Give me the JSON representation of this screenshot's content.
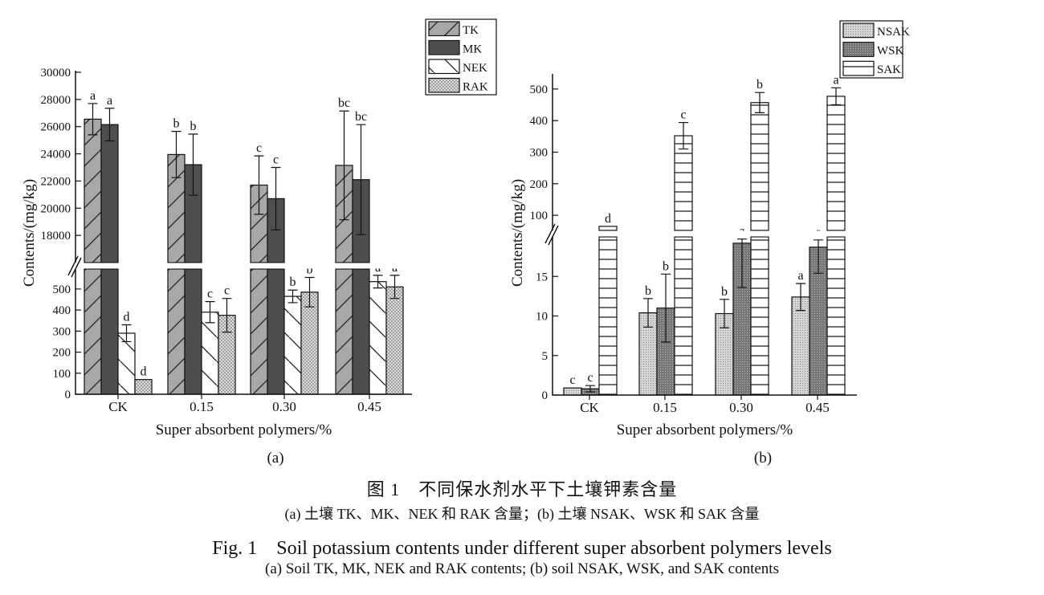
{
  "chart_data": [
    {
      "type": "bar",
      "panel_label": "(a)",
      "xlabel": "Super absorbent polymers/%",
      "ylabel": "Contents/(mg/kg)",
      "categories": [
        "CK",
        "0.15",
        "0.30",
        "0.45"
      ],
      "y_axis_break": true,
      "ylim_lower": [
        0,
        595
      ],
      "ylim_upper": [
        16000,
        30000
      ],
      "yticks_lower": [
        0,
        100,
        200,
        300,
        400,
        500
      ],
      "yticks_upper": [
        18000,
        20000,
        22000,
        24000,
        26000,
        28000,
        30000
      ],
      "legend_position": "top-right",
      "grid": false,
      "series": [
        {
          "name": "TK",
          "values": [
            26550,
            23950,
            21700,
            23150
          ],
          "errors": [
            1150,
            1700,
            2150,
            4000
          ],
          "letters": [
            "a",
            "b",
            "c",
            "bc"
          ],
          "pattern": "diagonal-forward",
          "color": "#a8a8a8"
        },
        {
          "name": "MK",
          "values": [
            26150,
            23200,
            20700,
            22100
          ],
          "errors": [
            1200,
            2250,
            2300,
            4050
          ],
          "letters": [
            "a",
            "b",
            "c",
            "bc"
          ],
          "pattern": "solid",
          "color": "#4e4e4e"
        },
        {
          "name": "NEK",
          "values": [
            290,
            390,
            465,
            535
          ],
          "errors": [
            40,
            50,
            30,
            30
          ],
          "letters": [
            "d",
            "c",
            "b",
            "a"
          ],
          "pattern": "diagonal-back",
          "color": "#ffffff"
        },
        {
          "name": "RAK",
          "values": [
            70,
            375,
            485,
            510
          ],
          "errors": [
            0,
            80,
            70,
            55
          ],
          "letters": [
            "d",
            "c",
            "b",
            "a"
          ],
          "pattern": "crosshatch",
          "color": "#d8d8d8"
        }
      ]
    },
    {
      "type": "bar",
      "panel_label": "(b)",
      "xlabel": "Super absorbent polymers/%",
      "ylabel": "Contents/(mg/kg)",
      "categories": [
        "CK",
        "0.15",
        "0.30",
        "0.45"
      ],
      "y_axis_break": true,
      "ylim_lower": [
        0,
        20
      ],
      "ylim_upper": [
        52,
        548
      ],
      "yticks_lower": [
        0,
        5,
        10,
        15
      ],
      "yticks_upper": [
        100,
        200,
        300,
        400,
        500
      ],
      "legend_position": "top-right",
      "grid": false,
      "series": [
        {
          "name": "NSAK",
          "values": [
            0.9,
            10.4,
            10.3,
            12.4
          ],
          "errors": [
            0,
            1.8,
            1.8,
            1.7
          ],
          "letters": [
            "c",
            "b",
            "b",
            "a"
          ],
          "pattern": "fine-dots",
          "color": "#c8c8c8"
        },
        {
          "name": "WSK",
          "values": [
            0.8,
            11.0,
            19.2,
            18.7
          ],
          "errors": [
            0.4,
            4.3,
            5.6,
            3.3
          ],
          "letters": [
            "c",
            "b",
            "a",
            "a"
          ],
          "pattern": "dark-dots",
          "color": "#7a7a7a"
        },
        {
          "name": "SAK",
          "values": [
            65,
            352,
            457,
            477
          ],
          "errors": [
            0,
            42,
            32,
            27
          ],
          "letters": [
            "d",
            "c",
            "b",
            "a"
          ],
          "pattern": "horizontal",
          "color": "#ffffff"
        }
      ]
    }
  ],
  "caption": {
    "zh_title": "图 1　不同保水剂水平下土壤钾素含量",
    "zh_sub": "(a) 土壤 TK、MK、NEK 和 RAK 含量；(b) 土壤 NSAK、WSK 和 SAK 含量",
    "en_title": "Fig. 1　Soil potassium contents under different super absorbent polymers levels",
    "en_sub": "(a) Soil TK, MK, NEK and RAK contents; (b) soil NSAK, WSK, and SAK contents"
  }
}
